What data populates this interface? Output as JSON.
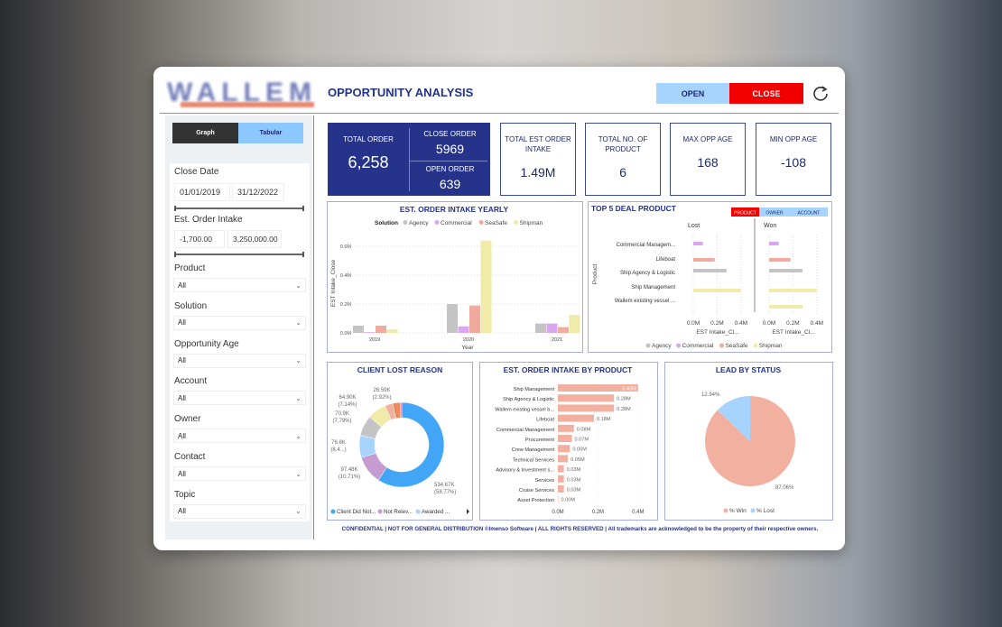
{
  "header": {
    "logo_text": "WALLEM",
    "title": "OPPORTUNITY ANALYSIS",
    "open_label": "OPEN",
    "close_label": "CLOSE",
    "refresh_icon": "refresh-icon"
  },
  "colors": {
    "navy": "#25338a",
    "open": "#a6d4ff",
    "close": "#f20000",
    "agency": "#c4c4c4",
    "commercial": "#d9a6f0",
    "seasafe": "#f2aa9e",
    "shipman": "#f0eba8"
  },
  "sidebar": {
    "graph_label": "Graph",
    "tabular_label": "Tabular",
    "close_date": {
      "label": "Close Date",
      "from": "01/01/2019",
      "to": "31/12/2022"
    },
    "order_intake": {
      "label": "Est. Order Intake",
      "from": "-1,700.00",
      "to": "3,250,000.00"
    },
    "dropdowns": [
      {
        "label": "Product",
        "value": "All"
      },
      {
        "label": "Solution",
        "value": "All"
      },
      {
        "label": "Opportunity Age",
        "value": "All"
      },
      {
        "label": "Account",
        "value": "All"
      },
      {
        "label": "Owner",
        "value": "All"
      },
      {
        "label": "Contact",
        "value": "All"
      },
      {
        "label": "Topic",
        "value": "All"
      }
    ]
  },
  "kpis": {
    "total_order": {
      "label": "TOTAL ORDER",
      "value": "6,258"
    },
    "close_order": {
      "label": "CLOSE ORDER",
      "value": "5969"
    },
    "open_order": {
      "label": "OPEN ORDER",
      "value": "639"
    },
    "cards": [
      {
        "label": "TOTAL EST ORDER INTAKE",
        "value": "1.49M"
      },
      {
        "label": "TOTAL NO. OF PRODUCT",
        "value": "6"
      },
      {
        "label": "MAX OPP AGE",
        "value": "168"
      },
      {
        "label": "MIN OPP AGE",
        "value": "-108"
      }
    ]
  },
  "footer": "CONFIDENTIAL | NOT FOR GENERAL DISTRIBUTION ©Imenso Software | ALL RIGHTS RESERVED | All trademarks are acknowledged to be the property of their respective owners.",
  "chart_data": [
    {
      "type": "bar",
      "title": "EST. ORDER INTAKE YEARLY",
      "xlabel": "Year",
      "ylabel": "EST Intake_Close",
      "legend_title": "Solution",
      "legend": "top",
      "ylim": [
        0,
        0.675
      ],
      "yticks": [
        "0.0M",
        "0.2M",
        "0.4M",
        "0.6M"
      ],
      "ytick_values": [
        0,
        0.2,
        0.4,
        0.6
      ],
      "categories": [
        "2019",
        "2020",
        "2021"
      ],
      "series": [
        {
          "name": "Agency",
          "values": [
            0.05,
            0.2,
            0.065
          ]
        },
        {
          "name": "Commercial",
          "values": [
            0.005,
            0.045,
            0.065
          ]
        },
        {
          "name": "SeaSafe",
          "values": [
            0.05,
            0.19,
            0.04
          ]
        },
        {
          "name": "Shipman",
          "values": [
            0.025,
            0.64,
            0.125
          ]
        }
      ]
    },
    {
      "type": "bar",
      "orientation": "horizontal",
      "title": "TOP 5 DEAL PRODUCT",
      "ylabel": "Product",
      "xlabel": "EST Intake_Cl...",
      "tabs": [
        "PRODUCT",
        "OWNER",
        "ACCOUNT"
      ],
      "active_tab": "PRODUCT",
      "panels": [
        "Lost",
        "Won"
      ],
      "xticks": [
        "0.0M",
        "0.2M",
        "0.4M"
      ],
      "legend": "bottom",
      "categories": [
        "Commercial Managem...",
        "Lifeboat",
        "Ship Agency & Logistic",
        "Ship Management",
        "Wallem existing vessel ..."
      ],
      "category_series": [
        "Commercial",
        "SeaSafe",
        "Agency",
        "Shipman",
        "Shipman"
      ],
      "series_names": [
        "Agency",
        "Commercial",
        "SeaSafe",
        "Shipman"
      ],
      "lost": [
        0.08,
        0.18,
        0.28,
        0.4,
        0
      ],
      "won": [
        0.08,
        0.18,
        0.28,
        0.4,
        0.28
      ]
    },
    {
      "type": "pie",
      "variant": "donut",
      "title": "CLIENT LOST REASON",
      "legend": "bottom",
      "legend_entries": [
        "Client Did Not...",
        "Not Relev...",
        "Awarded ..."
      ],
      "slices": [
        {
          "value": 534.67,
          "label": "534.67K",
          "pct": "(58.77%)",
          "color": "#42a5f5"
        },
        {
          "value": 97.48,
          "label": "97.48K",
          "pct": "(10.71%)",
          "color": "#c59bd1"
        },
        {
          "value": 76.8,
          "label": "76.8K",
          "pct": "(8.4...)",
          "color": "#a6d4ff"
        },
        {
          "value": 70.9,
          "label": "70.9K",
          "pct": "(7.79%)",
          "color": "#c4c4c4"
        },
        {
          "value": 64.9,
          "label": "64.90K",
          "pct": "(7.14%)",
          "color": "#f0eba8"
        },
        {
          "value": 26,
          "label": "",
          "pct": "",
          "color": "#f2b0a0"
        },
        {
          "value": 26.59,
          "label": "26.59K",
          "pct": "(2.92%)",
          "color": "#ec8a60"
        },
        {
          "value": 5,
          "label": "",
          "pct": "",
          "color": "#e070b0"
        }
      ]
    },
    {
      "type": "bar",
      "orientation": "horizontal",
      "title": "EST. ORDER INTAKE BY PRODUCT",
      "xticks": [
        "0.0M",
        "0.2M",
        "0.4M"
      ],
      "categories": [
        "Ship Management",
        "Ship Agency & Logistic",
        "Wallem existing vessel b...",
        "Lifeboat",
        "Commercial Management",
        "Procurement",
        "Crew Management",
        "Technical Services",
        "Advisory & Investment s...",
        "Services",
        "Cruise Services",
        "Asset Protection"
      ],
      "values": [
        0.4,
        0.28,
        0.28,
        0.18,
        0.08,
        0.07,
        0.06,
        0.05,
        0.03,
        0.03,
        0.03,
        0.0
      ],
      "labels": [
        "0.40M",
        "0.28M",
        "0.28M",
        "0.18M",
        "0.08M",
        "0.07M",
        "0.06M",
        "0.05M",
        "0.03M",
        "0.03M",
        "0.03M",
        "0.00M"
      ]
    },
    {
      "type": "pie",
      "title": "LEAD BY STATUS",
      "legend": "bottom",
      "slices": [
        {
          "name": "% Win",
          "value": 87.06,
          "label": "87.06%",
          "color": "#f2b0a0"
        },
        {
          "name": "% Lost",
          "value": 12.94,
          "label": "12.94%",
          "color": "#a6d4ff"
        }
      ]
    }
  ]
}
